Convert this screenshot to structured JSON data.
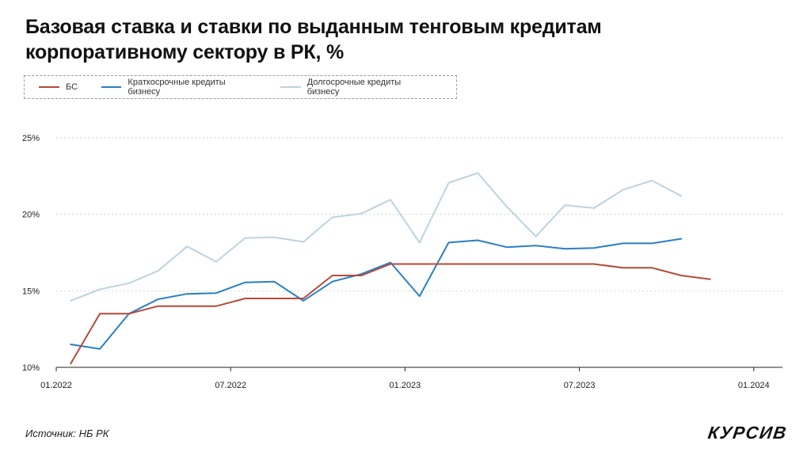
{
  "title": "Базовая ставка и ставки по выданным тенговым кредитам корпоративному сектору в РК, %",
  "source": "Источник: НБ РК",
  "logo": "КУРСИВ",
  "chart_data": {
    "type": "line",
    "title": "Базовая ставка и ставки по выданным тенговым кредитам корпоративному сектору в РК, %",
    "xlabel": "",
    "ylabel": "",
    "ylim": [
      10,
      25
    ],
    "yticks": [
      "10%",
      "15%",
      "20%",
      "25%"
    ],
    "ytick_values": [
      10,
      15,
      20,
      25
    ],
    "xticks": [
      "01.2022",
      "07.2022",
      "01.2023",
      "07.2023",
      "01.2024"
    ],
    "xtick_month_index": [
      0,
      6,
      12,
      18,
      24
    ],
    "legend_position": "top",
    "grid": "horizontal dotted",
    "x_month_index": [
      0.5,
      1.5,
      2.5,
      3.5,
      4.5,
      5.5,
      6.5,
      7.5,
      8.5,
      9.5,
      10.5,
      11.5,
      12.5,
      13.5,
      14.5,
      15.5,
      16.5,
      17.5,
      18.5,
      19.5,
      20.5,
      21.5,
      22.5
    ],
    "series": [
      {
        "name": "БС",
        "color": "#b5493a",
        "values": [
          10.25,
          13.5,
          13.5,
          14.0,
          14.0,
          14.0,
          14.5,
          14.5,
          14.5,
          16.0,
          16.0,
          16.75,
          16.75,
          16.75,
          16.75,
          16.75,
          16.75,
          16.75,
          16.75,
          16.5,
          16.5,
          16.0,
          15.75
        ]
      },
      {
        "name": "Краткосрочные кредиты бизнесу",
        "color": "#2a7fc4",
        "values": [
          11.5,
          11.2,
          13.5,
          14.45,
          14.8,
          14.85,
          15.55,
          15.6,
          14.35,
          15.6,
          16.1,
          16.85,
          14.65,
          18.15,
          18.3,
          17.85,
          17.95,
          17.75,
          17.8,
          18.1,
          18.1,
          18.4
        ]
      },
      {
        "name": "Долгосрочные кредиты бизнесу",
        "color": "#bcd3e0",
        "values": [
          14.35,
          15.1,
          15.5,
          16.3,
          17.9,
          16.9,
          18.45,
          18.5,
          18.2,
          19.8,
          20.05,
          20.95,
          18.15,
          22.05,
          22.7,
          20.5,
          18.55,
          20.6,
          20.4,
          21.6,
          22.2,
          21.2
        ]
      }
    ]
  }
}
